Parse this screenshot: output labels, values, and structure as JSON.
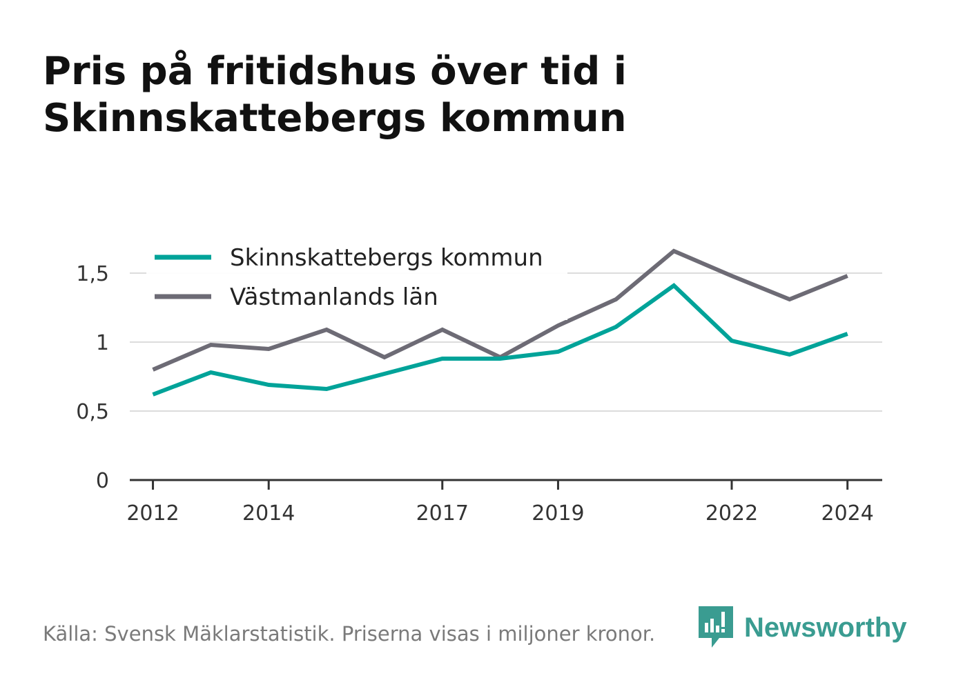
{
  "title_lines": [
    "Pris på fritidshus över tid i",
    "Skinnskattebergs kommun"
  ],
  "footer": {
    "source": "Källa: Svensk Mäklarstatistik. Priserna visas i miljoner kronor."
  },
  "brand": {
    "name": "Newsworthy",
    "color": "#3a9c91",
    "icon": "newsworthy-logo-icon"
  },
  "chart_data": {
    "type": "line",
    "x": [
      2012,
      2013,
      2014,
      2015,
      2016,
      2017,
      2018,
      2019,
      2020,
      2021,
      2022,
      2023,
      2024
    ],
    "x_ticks": [
      2012,
      2014,
      2017,
      2019,
      2022,
      2024
    ],
    "x_tick_labels": [
      "2012",
      "2014",
      "2017",
      "2019",
      "2022",
      "2024"
    ],
    "y_ticks": [
      0,
      0.5,
      1,
      1.5
    ],
    "y_tick_labels": [
      "0",
      "0,5",
      "1",
      "1,5"
    ],
    "ylim": [
      0,
      1.5
    ],
    "xlim": [
      2011.6,
      2024.6
    ],
    "grid": true,
    "legend_position": "top-left",
    "series": [
      {
        "name": "Skinnskattebergs kommun",
        "color": "#00a399",
        "values": [
          0.62,
          0.78,
          0.69,
          0.66,
          0.77,
          0.88,
          0.88,
          0.93,
          1.11,
          1.41,
          1.01,
          0.91,
          1.06
        ]
      },
      {
        "name": "Västmanlands län",
        "color": "#6d6b75",
        "values": [
          0.8,
          0.98,
          0.95,
          1.09,
          0.89,
          1.09,
          0.89,
          1.12,
          1.31,
          1.66,
          1.48,
          1.31,
          1.48
        ]
      }
    ]
  }
}
